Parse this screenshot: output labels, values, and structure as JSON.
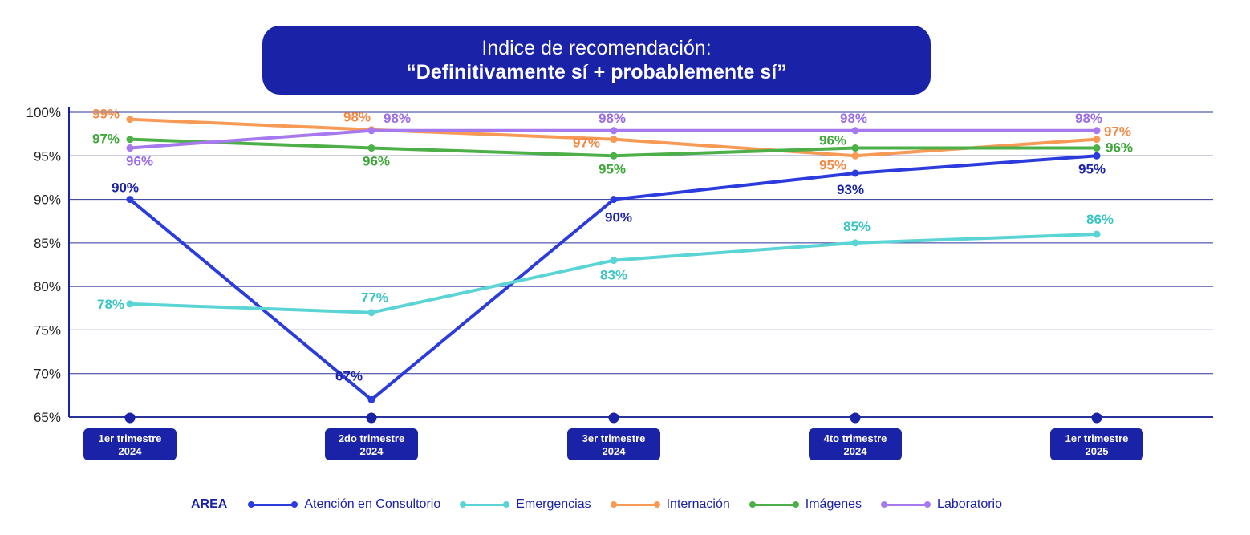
{
  "title": {
    "line1": "Indice de recomendación:",
    "line2": "“Definitivamente sí + probablemente sí”"
  },
  "colors": {
    "navy": "#1a22a8",
    "grid": "#2a3399"
  },
  "chart_data": {
    "type": "line",
    "y_ticks": [
      "100%",
      "95%",
      "90%",
      "85%",
      "80%",
      "75%",
      "70%",
      "65%"
    ],
    "ylim": [
      65,
      100
    ],
    "categories": [
      [
        "1er trimestre",
        "2024"
      ],
      [
        "2do trimestre",
        "2024"
      ],
      [
        "3er trimestre",
        "2024"
      ],
      [
        "4to trimestre",
        "2024"
      ],
      [
        "1er trimestre",
        "2025"
      ]
    ],
    "legend_title": "AREA",
    "series": [
      {
        "name": "Atención en Consultorio",
        "color": "#2b3bdc",
        "label_color": "#1a22a8",
        "values": [
          90,
          67,
          90,
          93,
          95
        ],
        "labels": [
          "90%",
          "67%",
          "90%",
          "93%",
          "95%"
        ]
      },
      {
        "name": "Emergencias",
        "color": "#5ad4d4",
        "label_color": "#3cc4c4",
        "values": [
          78,
          77,
          83,
          85,
          86
        ],
        "labels": [
          "78%",
          "77%",
          "83%",
          "85%",
          "86%"
        ]
      },
      {
        "name": "Internación",
        "color": "#f79a55",
        "label_color": "#f28a45",
        "values": [
          99.2,
          98,
          96.9,
          95,
          96.9
        ],
        "labels": [
          "99%",
          "98%",
          "97%",
          "95%",
          "97%"
        ]
      },
      {
        "name": "Imágenes",
        "color": "#4caf47",
        "label_color": "#3fa63a",
        "values": [
          96.9,
          95.9,
          95,
          95.9,
          95.9
        ],
        "labels": [
          "97%",
          "96%",
          "95%",
          "96%",
          "96%"
        ]
      },
      {
        "name": "Laboratorio",
        "color": "#a779ee",
        "label_color": "#9b6ce8",
        "values": [
          95.9,
          97.9,
          97.9,
          97.9,
          97.9
        ],
        "labels": [
          "96%",
          "98%",
          "98%",
          "98%",
          "98%"
        ]
      }
    ]
  }
}
